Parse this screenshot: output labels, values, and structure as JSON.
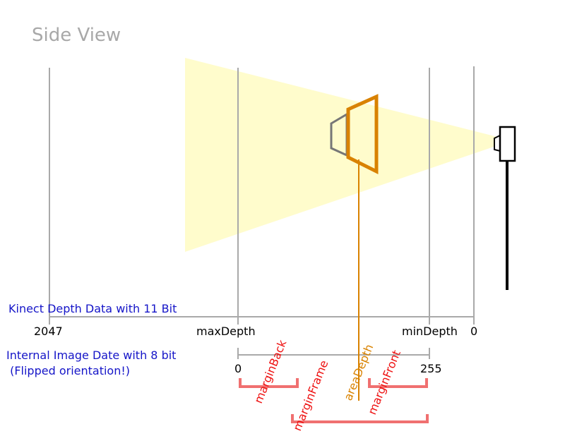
{
  "title": "Side View",
  "kinect_axis": {
    "label": "Kinect Depth Data with 11 Bit",
    "ticks": [
      "2047",
      "maxDepth",
      "minDepth",
      "0"
    ]
  },
  "image_axis": {
    "label_line1": "Internal Image Date with 8 bit",
    "label_line2": " (Flipped orientation!)",
    "ticks": [
      "0",
      "255"
    ]
  },
  "annotations": {
    "margin_back": "marginBack",
    "margin_frame": "marginFrame",
    "area_depth": "areaDepth",
    "margin_front": "marginFront"
  },
  "colors": {
    "beam": "#fffccc",
    "gridline": "#a9a9a9",
    "frame_orange": "#d98200",
    "frame_gray": "#777777",
    "bracket": "#f07070",
    "label_blue": "#1515c8",
    "label_red": "#ee1111"
  },
  "icons": {
    "camera": "kinect-camera-icon",
    "frame": "projection-frame-icon"
  }
}
